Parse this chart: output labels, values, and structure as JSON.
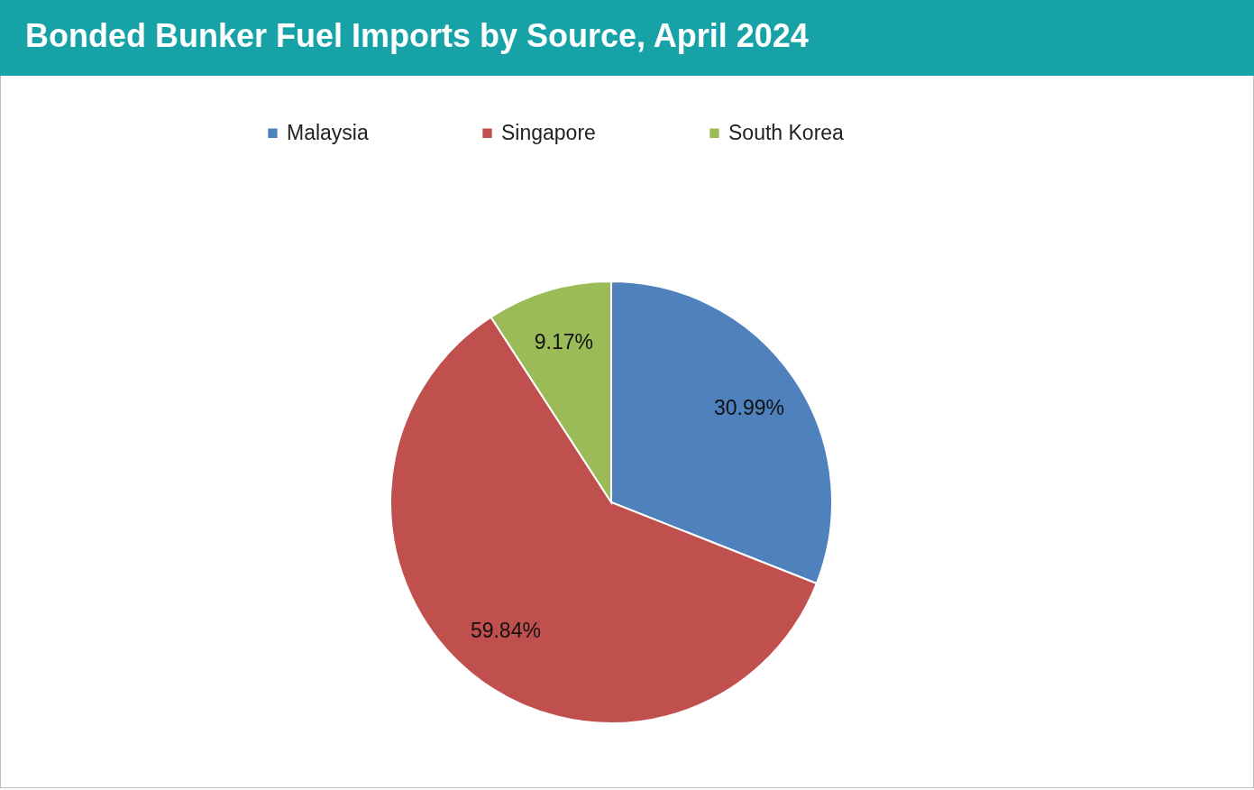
{
  "chart_data": {
    "type": "pie",
    "title": "Bonded Bunker Fuel Imports by Source, April 2024",
    "categories": [
      "Malaysia",
      "Singapore",
      "South Korea"
    ],
    "values": [
      30.99,
      59.84,
      9.17
    ],
    "value_labels": [
      "30.99%",
      "59.84%",
      "9.17%"
    ],
    "colors": [
      "#4f81bd",
      "#c0504d",
      "#9bbb59"
    ],
    "legend": "top"
  }
}
